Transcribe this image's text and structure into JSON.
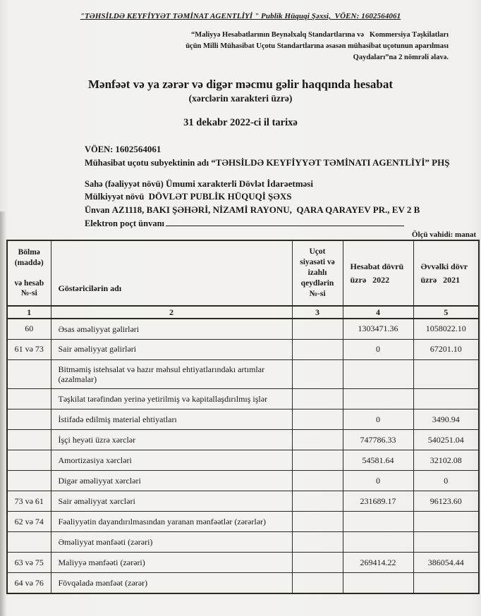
{
  "page": {
    "org_header": "\"TƏHSİLDƏ KEYFİYYƏT TƏMİNAT AGENTLİYİ \" Publik Hüquqi Şəxsi,  VÖEN: 1602564061",
    "regulation_note": {
      "line1": "“Maliyyə Hesabatlarının Beynəlxalq Standartlarına və   Kommersiya Təşkilatları",
      "line2": "üçün Milli Mühasibat Uçotu Standartlarına əsasən mühasibat uçotunun aparılması",
      "line3": "Qaydaları”na 2 nömrəli əlavə."
    },
    "title": "Mənfəət və ya zərər və digər məcmu gəlir haqqında hesabat",
    "subtitle": "(xərclərin xarakteri üzrə)",
    "report_date": "31 dekabr 2022-ci il tarixə"
  },
  "entity": {
    "voen_label": "VÖEN:",
    "voen_value": "1602564061",
    "subject_label": "Mühasibat uçotu subyektinin adı",
    "subject_name": "“TƏHSİLDƏ KEYFİYYƏT TƏMİNATI AGENTLİYİ” PHŞ",
    "sector_label": "Sahə (fəaliyyət növü)",
    "sector_value": "Ümumi xarakterli Dövlət İdarəetməsi",
    "ownership_label": "Mülkiyyət növü",
    "ownership_value": "DÖVLƏT PUBLİK HÜQUQİ ŞƏXS",
    "address_label": "Ünvan",
    "address_value": "AZ1118, BAKI ŞƏHƏRİ, NİZAMİ RAYONU,  QARA QARAYEV PR., EV 2 B",
    "email_label": "Elektron poçt ünvanı"
  },
  "table": {
    "unit_note": "Ölçü vahidi: manat",
    "columns": {
      "section_top": "Bölmə (maddə)",
      "section_bottom": "və hesab №-si",
      "indicator": "Göstəricilərin adı",
      "notes": "Uçot siyasəti və izahlı qeydlərin №-si",
      "current_line1": "Hesabat dövrü",
      "current_line2": "üzrə   2022",
      "previous_line1": "Əvvəlki dövr",
      "previous_line2": "üzrə   2021",
      "index_row": [
        "1",
        "2",
        "3",
        "4",
        "5"
      ]
    },
    "rows": [
      {
        "code": "60",
        "name": "Əsas əməliyyat gəlirləri",
        "note": "",
        "current": "1303471.36",
        "previous": "1058022.10"
      },
      {
        "code": "61 və 73",
        "name": "Sair əməliyyat gəlirləri",
        "note": "",
        "current": "0",
        "previous": "67201.10"
      },
      {
        "code": "",
        "name": "Bitməmiş istehsalat və hazır məhsul ehtiyatlarındakı artımlar (azalmalar)",
        "note": "",
        "current": "",
        "previous": ""
      },
      {
        "code": "",
        "name": "Təşkilat tərəfindən yerinə yetirilmiş və kapitallaşdırılmış işlər",
        "note": "",
        "current": "",
        "previous": ""
      },
      {
        "code": "",
        "name": "İstifadə edilmiş material ehtiyatları",
        "note": "",
        "current": "0",
        "previous": "3490.94"
      },
      {
        "code": "",
        "name": "İşçi heyəti üzrə xərclər",
        "note": "",
        "current": "747786.33",
        "previous": "540251.04"
      },
      {
        "code": "",
        "name": "Amortizasiya xərcləri",
        "note": "",
        "current": "54581.64",
        "previous": "32102.08"
      },
      {
        "code": "",
        "name": "Digər əməliyyat xərcləri",
        "note": "",
        "current": "0",
        "previous": "0"
      },
      {
        "code": "73 və 61",
        "name": "Sair əməliyyat xərcləri",
        "note": "",
        "current": "231689.17",
        "previous": "96123.60"
      },
      {
        "code": "62 və 74",
        "name": "Fəaliyyətin dayandırılmasından yaranan mənfəətlər (zərərlər)",
        "note": "",
        "current": "",
        "previous": ""
      },
      {
        "code": "",
        "name": "Əməliyyat mənfəəti (zərəri)",
        "note": "",
        "current": "",
        "previous": ""
      },
      {
        "code": "63 və 75",
        "name": "Maliyyə mənfəəti (zərəri)",
        "note": "",
        "current": "269414.22",
        "previous": "386054.44"
      },
      {
        "code": "64 və 76",
        "name": "Fövqəladə mənfəət (zərər)",
        "note": "",
        "current": "",
        "previous": ""
      }
    ]
  }
}
